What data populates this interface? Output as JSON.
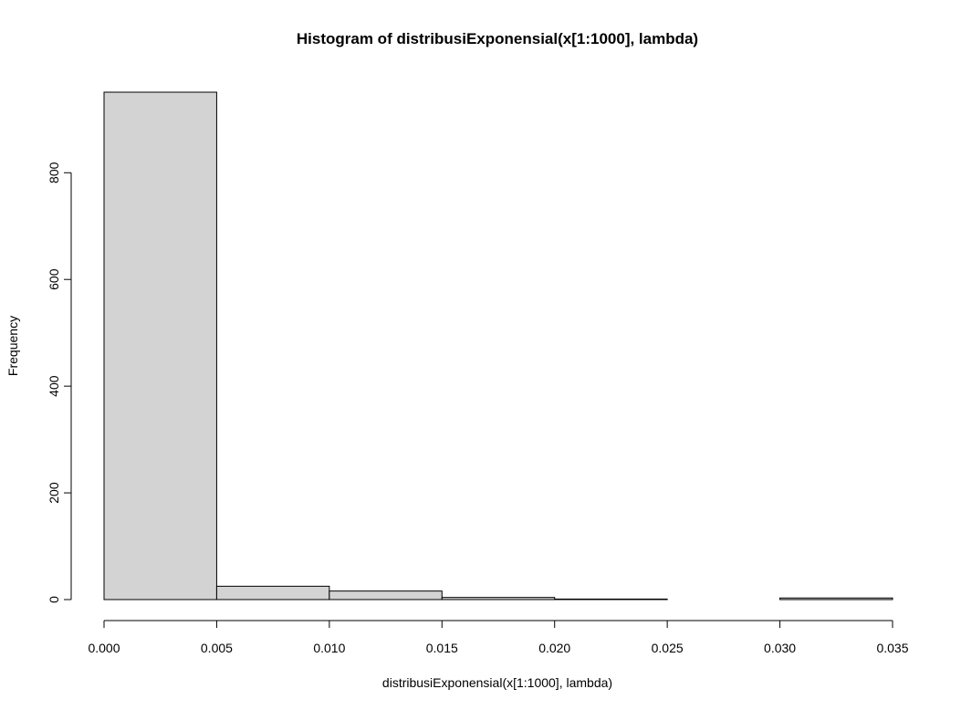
{
  "chart_data": {
    "type": "bar",
    "title": "Histogram of distribusiExponensial(x[1:1000], lambda)",
    "xlabel": "distribusiExponensial(x[1:1000], lambda)",
    "ylabel": "Frequency",
    "bins": [
      {
        "start": 0.0,
        "end": 0.005,
        "count": 951
      },
      {
        "start": 0.005,
        "end": 0.01,
        "count": 25
      },
      {
        "start": 0.01,
        "end": 0.015,
        "count": 16
      },
      {
        "start": 0.015,
        "end": 0.02,
        "count": 4
      },
      {
        "start": 0.02,
        "end": 0.025,
        "count": 1
      },
      {
        "start": 0.025,
        "end": 0.03,
        "count": 0
      },
      {
        "start": 0.03,
        "end": 0.035,
        "count": 3
      }
    ],
    "xlim": [
      0,
      0.035
    ],
    "ylim": [
      0,
      951
    ],
    "xticks": [
      0.0,
      0.005,
      0.01,
      0.015,
      0.02,
      0.025,
      0.03,
      0.035
    ],
    "xtick_labels": [
      "0.000",
      "0.005",
      "0.010",
      "0.015",
      "0.020",
      "0.025",
      "0.030",
      "0.035"
    ],
    "yticks": [
      0,
      200,
      400,
      600,
      800
    ],
    "ytick_labels": [
      "0",
      "200",
      "400",
      "600",
      "800"
    ],
    "bar_fill": "#d3d3d3",
    "bar_stroke": "#000000",
    "grid": false
  }
}
